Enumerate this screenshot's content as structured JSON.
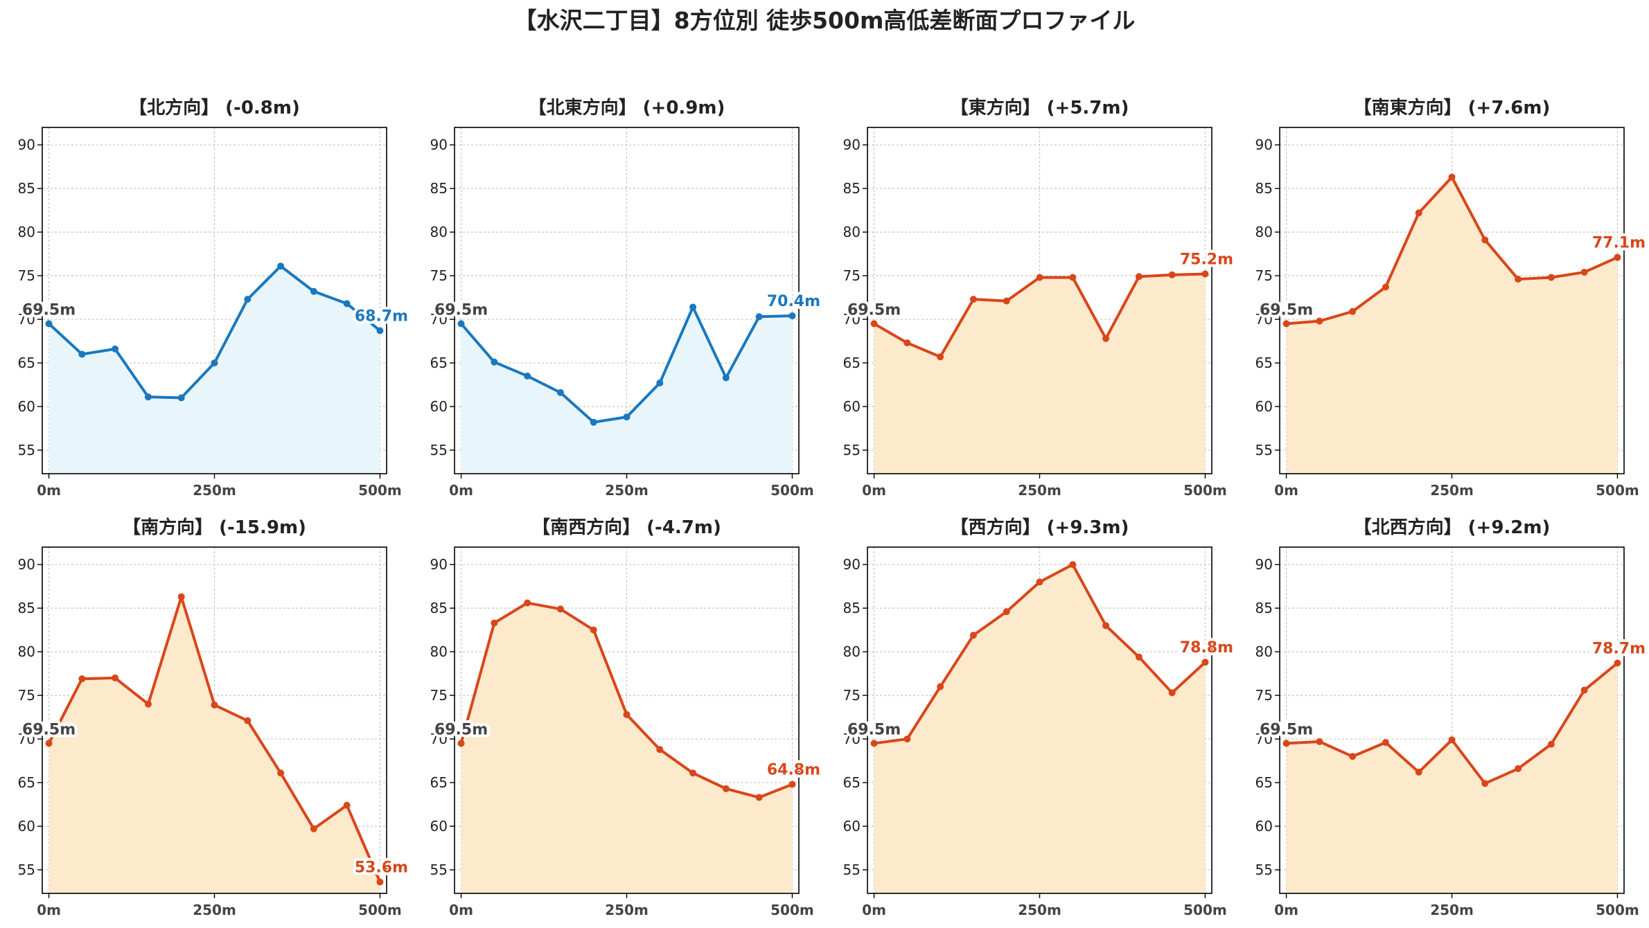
{
  "title": "【水沢二丁目】8方位別 徒歩500m高低差断面プロファイル",
  "colors": {
    "down": "#1a78be",
    "down_fill": "#e8f6fb",
    "up": "#d9461a",
    "up_fill": "#fde9cc",
    "grid": "#c4c4c4",
    "axis": "#000000"
  },
  "chart_data": [
    {
      "type": "area",
      "title": "【北方向】 (-0.8m)",
      "trend": "down",
      "x": [
        0,
        50,
        100,
        150,
        200,
        250,
        300,
        350,
        400,
        450,
        500
      ],
      "values": [
        69.5,
        66.0,
        66.6,
        61.1,
        61.0,
        65.0,
        72.3,
        76.1,
        73.2,
        71.8,
        68.7
      ],
      "start_label": "69.5m",
      "end_label": "68.7m"
    },
    {
      "type": "area",
      "title": "【北東方向】 (+0.9m)",
      "trend": "down",
      "x": [
        0,
        50,
        100,
        150,
        200,
        250,
        300,
        350,
        400,
        450,
        500
      ],
      "values": [
        69.5,
        65.1,
        63.5,
        61.6,
        58.2,
        58.8,
        62.7,
        71.4,
        63.3,
        70.3,
        70.4
      ],
      "start_label": "69.5m",
      "end_label": "70.4m"
    },
    {
      "type": "area",
      "title": "【東方向】 (+5.7m)",
      "trend": "up",
      "x": [
        0,
        50,
        100,
        150,
        200,
        250,
        300,
        350,
        400,
        450,
        500
      ],
      "values": [
        69.5,
        67.3,
        65.7,
        72.3,
        72.1,
        74.8,
        74.8,
        67.8,
        74.9,
        75.1,
        75.2
      ],
      "start_label": "69.5m",
      "end_label": "75.2m"
    },
    {
      "type": "area",
      "title": "【南東方向】 (+7.6m)",
      "trend": "up",
      "x": [
        0,
        50,
        100,
        150,
        200,
        250,
        300,
        350,
        400,
        450,
        500
      ],
      "values": [
        69.5,
        69.8,
        70.9,
        73.7,
        82.2,
        86.3,
        79.1,
        74.6,
        74.8,
        75.4,
        77.1
      ],
      "start_label": "69.5m",
      "end_label": "77.1m"
    },
    {
      "type": "area",
      "title": "【南方向】 (-15.9m)",
      "trend": "up",
      "x": [
        0,
        50,
        100,
        150,
        200,
        250,
        300,
        350,
        400,
        450,
        500
      ],
      "values": [
        69.5,
        76.9,
        77.0,
        74.0,
        86.3,
        73.9,
        72.1,
        66.1,
        59.7,
        62.4,
        53.6
      ],
      "start_label": "69.5m",
      "end_label": "53.6m"
    },
    {
      "type": "area",
      "title": "【南西方向】 (-4.7m)",
      "trend": "up",
      "x": [
        0,
        50,
        100,
        150,
        200,
        250,
        300,
        350,
        400,
        450,
        500
      ],
      "values": [
        69.5,
        83.3,
        85.6,
        84.9,
        82.5,
        72.8,
        68.8,
        66.1,
        64.3,
        63.3,
        64.8
      ],
      "start_label": "69.5m",
      "end_label": "64.8m"
    },
    {
      "type": "area",
      "title": "【西方向】 (+9.3m)",
      "trend": "up",
      "x": [
        0,
        50,
        100,
        150,
        200,
        250,
        300,
        350,
        400,
        450,
        500
      ],
      "values": [
        69.5,
        70.0,
        76.0,
        81.9,
        84.6,
        88.0,
        90.0,
        83.0,
        79.4,
        75.3,
        78.8
      ],
      "start_label": "69.5m",
      "end_label": "78.8m"
    },
    {
      "type": "area",
      "title": "【北西方向】 (+9.2m)",
      "trend": "up",
      "x": [
        0,
        50,
        100,
        150,
        200,
        250,
        300,
        350,
        400,
        450,
        500
      ],
      "values": [
        69.5,
        69.7,
        68.0,
        69.6,
        66.2,
        69.9,
        64.9,
        66.6,
        69.4,
        75.6,
        78.7
      ],
      "start_label": "69.5m",
      "end_label": "78.7m"
    }
  ],
  "axes": {
    "xlim": [
      -10,
      510
    ],
    "ylim": [
      52.3,
      92.0
    ],
    "yticks": [
      55,
      60,
      65,
      70,
      75,
      80,
      85,
      90
    ],
    "xticks": [
      0,
      250,
      500
    ],
    "xtick_labels": [
      "0m",
      "250m",
      "500m"
    ],
    "grid": true
  }
}
